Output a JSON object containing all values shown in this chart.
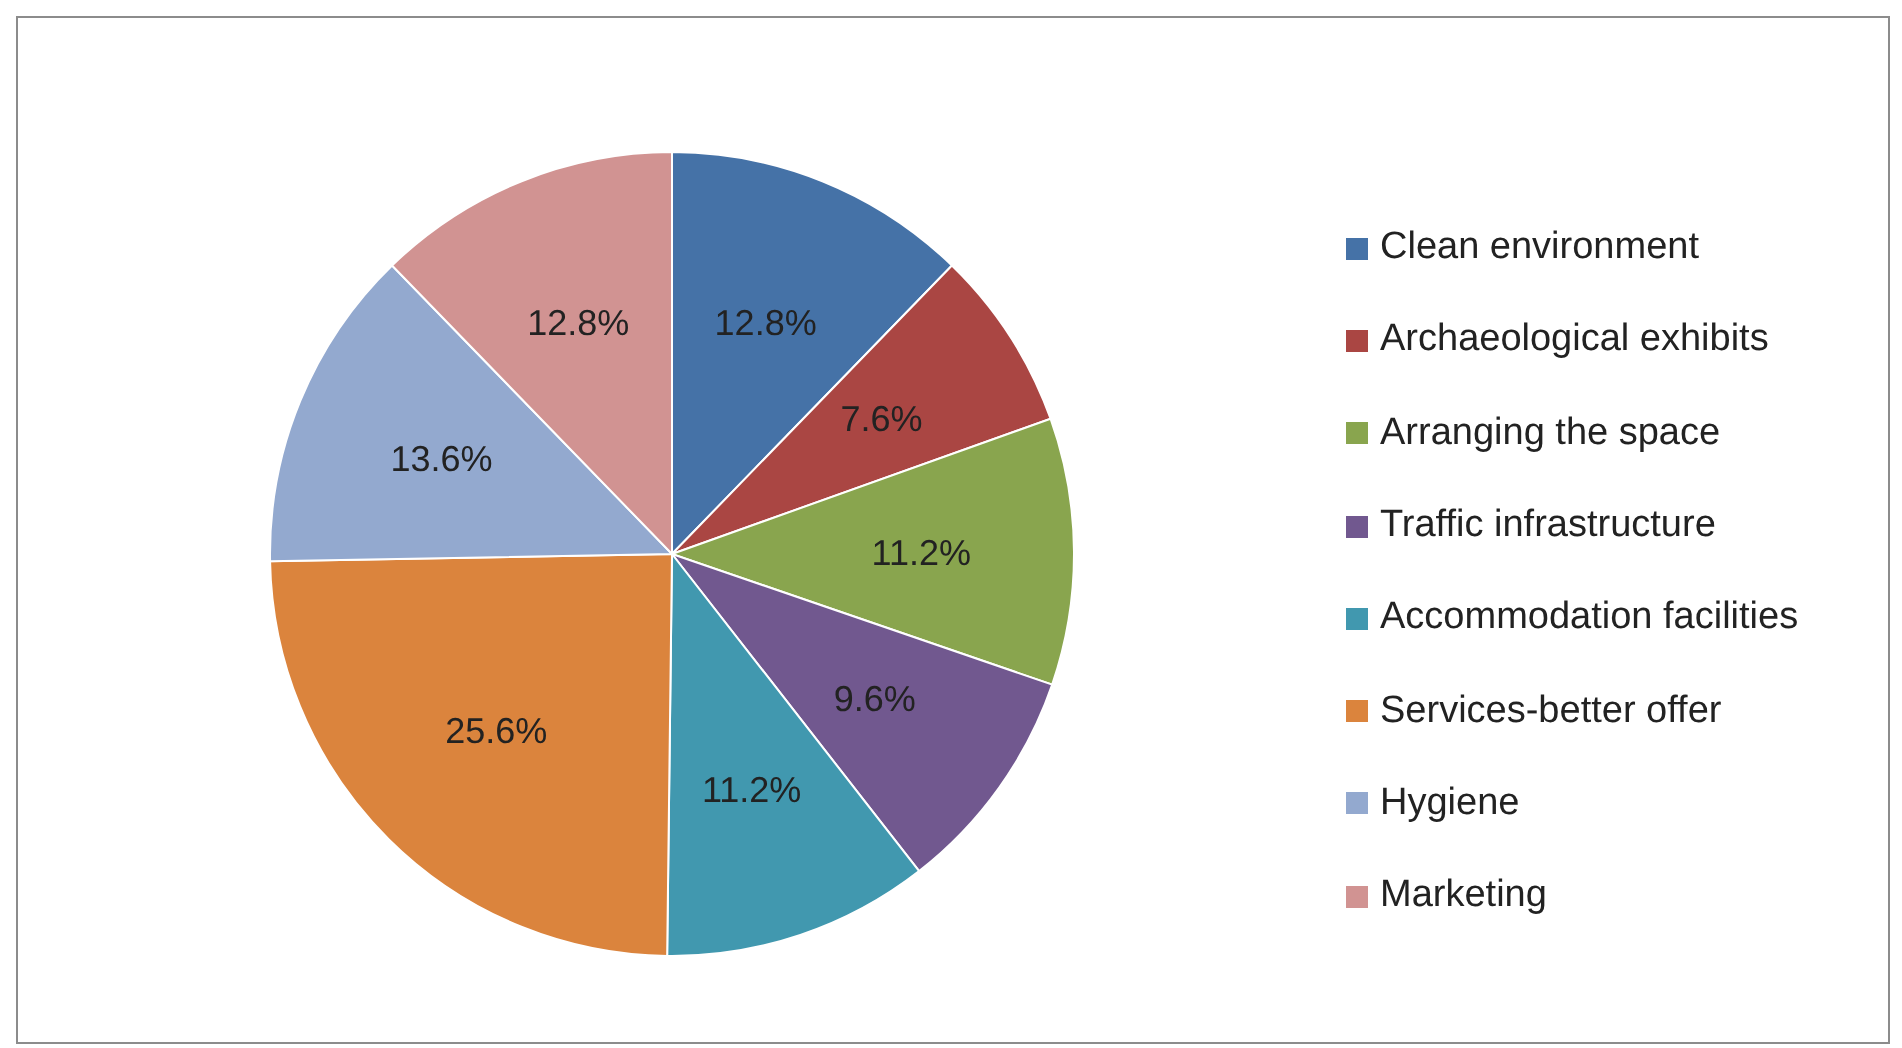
{
  "chart_data": {
    "type": "pie",
    "categories": [
      "Clean environment",
      "Archaeological exhibits",
      "Arranging the space",
      "Traffic infrastructure",
      "Accommodation facilities",
      "Services-better offer",
      "Hygiene",
      "Marketing"
    ],
    "values": [
      12.8,
      7.6,
      11.2,
      9.6,
      11.2,
      25.6,
      13.6,
      12.8
    ],
    "colors": [
      "#4572a7",
      "#aa4643",
      "#89a54e",
      "#71588f",
      "#4198af",
      "#db843d",
      "#93a9cf",
      "#d19392"
    ],
    "value_labels": [
      "12.8%",
      "7.6%",
      "11.2%",
      "9.6%",
      "11.2%",
      "25.6%",
      "13.6%",
      "12.8%"
    ],
    "legend": "right"
  }
}
